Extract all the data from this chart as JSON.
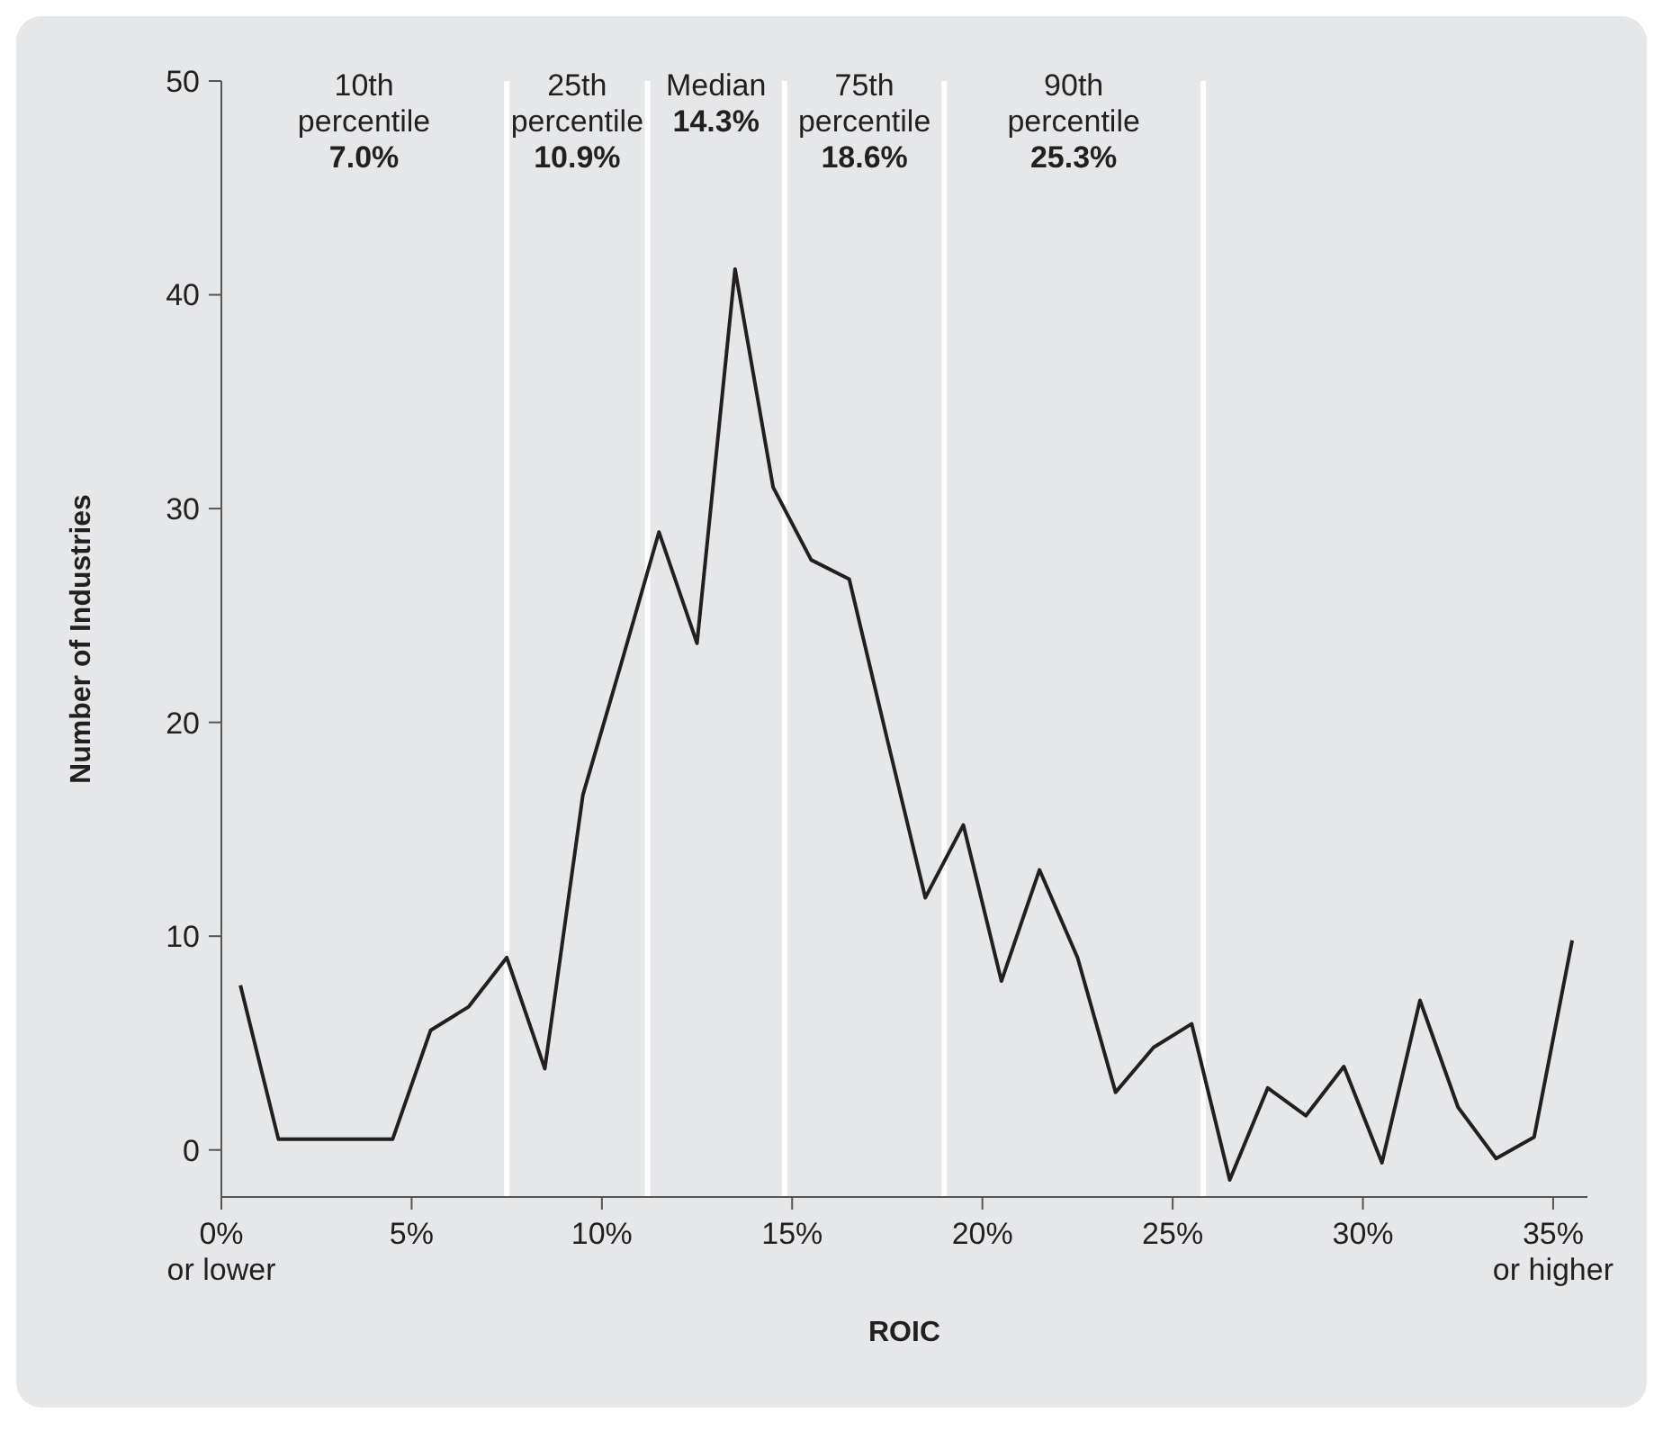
{
  "chart_data": {
    "type": "line",
    "xlabel": "ROIC",
    "ylabel": "Number of Industries",
    "x": [
      0.5,
      1.5,
      2.5,
      3.5,
      4.5,
      5.5,
      6.5,
      7.5,
      8.5,
      9.5,
      10.5,
      11.5,
      12.5,
      13.5,
      14.5,
      15.5,
      16.5,
      17.5,
      18.5,
      19.5,
      20.5,
      21.5,
      22.5,
      23.5,
      24.5,
      25.5,
      26.5,
      27.5,
      28.5,
      29.5,
      30.5,
      31.5,
      32.5,
      33.5,
      34.5,
      35.5
    ],
    "series": [
      {
        "color": "#231f20",
        "values": [
          7.7,
          0.5,
          0.5,
          0.5,
          0.5,
          5.6,
          6.7,
          9.0,
          3.8,
          16.6,
          22.7,
          28.9,
          23.7,
          41.2,
          31.0,
          27.6,
          26.7,
          19.2,
          11.8,
          15.2,
          7.9,
          13.1,
          9.0,
          2.7,
          4.8,
          5.9,
          -1.4,
          2.9,
          1.6,
          3.9,
          -0.6,
          7.0,
          2.0,
          -0.4,
          0.6,
          9.8
        ]
      }
    ],
    "xlim": [
      0,
      35.9
    ],
    "ylim": [
      -2.2,
      50
    ],
    "xticks": [
      {
        "value": 0,
        "label": "0%\nor lower"
      },
      {
        "value": 5,
        "label": "5%"
      },
      {
        "value": 10,
        "label": "10%"
      },
      {
        "value": 15,
        "label": "15%"
      },
      {
        "value": 20,
        "label": "20%"
      },
      {
        "value": 25,
        "label": "25%"
      },
      {
        "value": 30,
        "label": "30%"
      },
      {
        "value": 35,
        "label": "35%\nor higher"
      }
    ],
    "yticks": [
      0,
      10,
      20,
      30,
      40,
      50
    ],
    "grid": false,
    "marker": "none",
    "line_style": "solid",
    "ref_lines": [
      {
        "axis": "x",
        "value": 7.5,
        "color": "#ffffff"
      },
      {
        "axis": "x",
        "value": 11.2,
        "color": "#ffffff"
      },
      {
        "axis": "x",
        "value": 14.8,
        "color": "#ffffff"
      },
      {
        "axis": "x",
        "value": 19.0,
        "color": "#ffffff"
      },
      {
        "axis": "x",
        "value": 25.8,
        "color": "#ffffff"
      }
    ],
    "annotations": [
      "10th\npercentile\n7.0%",
      "25th\npercentile\n10.9%",
      "Median\n14.3%",
      "75th\npercentile\n18.6%",
      "90th\npercentile\n25.3%"
    ]
  }
}
